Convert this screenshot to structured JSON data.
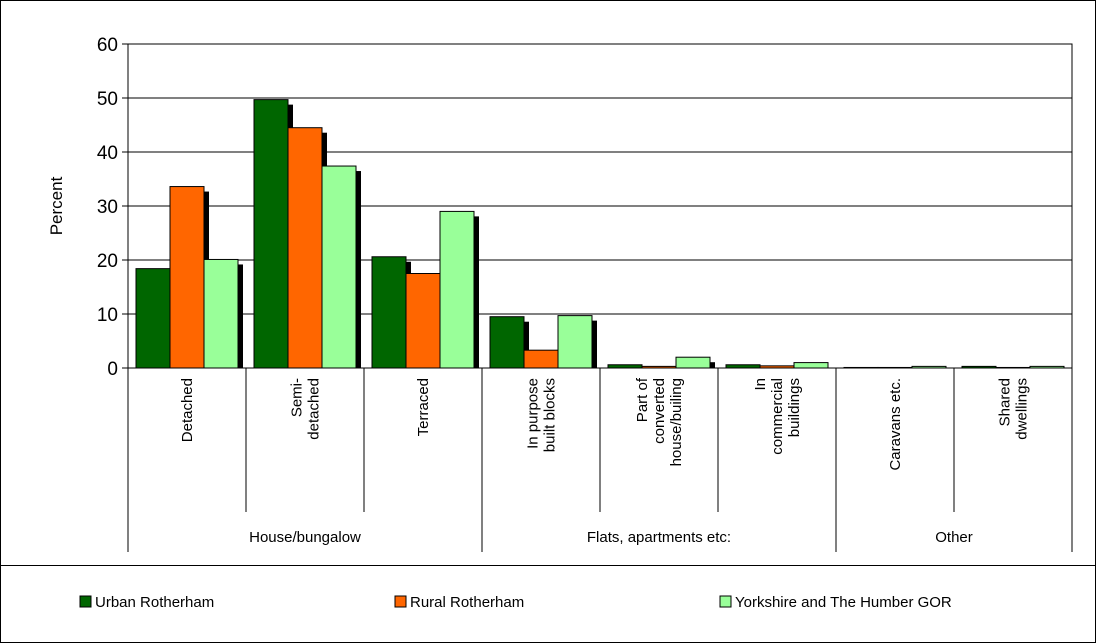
{
  "chart_data": {
    "type": "bar",
    "title": "",
    "xlabel": "",
    "ylabel": "Percent",
    "ylim": [
      0,
      60
    ],
    "yticks": [
      0,
      10,
      20,
      30,
      40,
      50,
      60
    ],
    "grid": true,
    "legend_position": "bottom",
    "groups": [
      {
        "label": "House/bungalow",
        "span": 3
      },
      {
        "label": "Flats, apartments etc:",
        "span": 3
      },
      {
        "label": "Other",
        "span": 2
      }
    ],
    "categories": [
      [
        "Detached"
      ],
      [
        "Semi-",
        "detached"
      ],
      [
        "Terraced"
      ],
      [
        "In purpose",
        "built blocks"
      ],
      [
        "Part of",
        "converted",
        "house/builing"
      ],
      [
        "In",
        "commercial",
        "buildings"
      ],
      [
        "Caravans etc."
      ],
      [
        "Shared",
        "dwellings"
      ]
    ],
    "series": [
      {
        "name": "Urban Rotherham",
        "color": "#006600",
        "values": [
          18.4,
          49.7,
          20.6,
          9.5,
          0.6,
          0.6,
          0.1,
          0.3
        ]
      },
      {
        "name": "Rural Rotherham",
        "color": "#ff6600",
        "values": [
          33.6,
          44.5,
          17.5,
          3.3,
          0.3,
          0.4,
          0.1,
          0.1
        ]
      },
      {
        "name": "Yorkshire and The Humber GOR",
        "color": "#99ff99",
        "values": [
          20.1,
          37.4,
          29.0,
          9.7,
          2.0,
          1.0,
          0.3,
          0.3
        ]
      }
    ]
  }
}
